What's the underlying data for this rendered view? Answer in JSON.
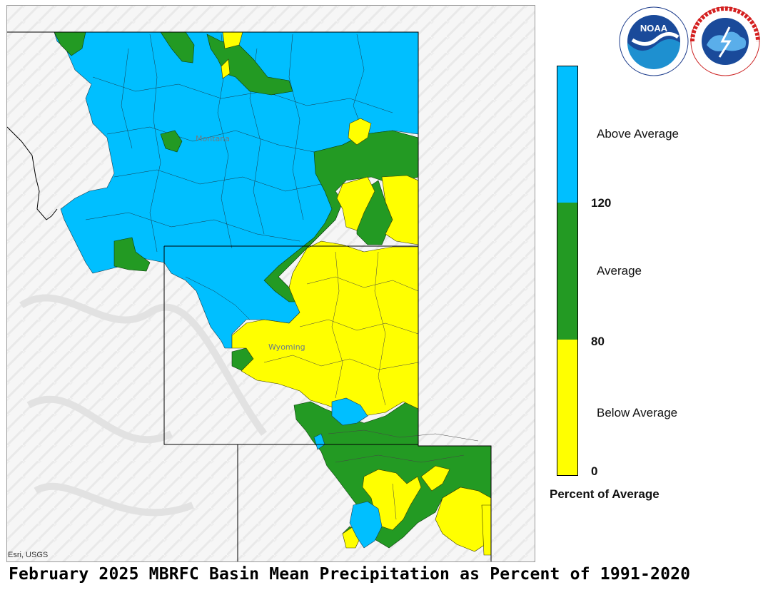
{
  "title": "February 2025 MBRFC Basin Mean Precipitation as Percent of 1991-2020",
  "attribution": "Esri, USGS",
  "map": {
    "state_labels": [
      "Montana",
      "Wyoming"
    ]
  },
  "legend": {
    "title": "Percent of Average",
    "categories": [
      {
        "label": "Above Average",
        "min": 120,
        "color": "#00bfff"
      },
      {
        "label": "Average",
        "min": 80,
        "max": 120,
        "color": "#239a23"
      },
      {
        "label": "Below Average",
        "min": 0,
        "max": 80,
        "color": "#ffff00"
      }
    ],
    "breaks": [
      "120",
      "80",
      "0"
    ]
  },
  "logos": {
    "noaa": {
      "text": "NOAA",
      "ring_text": "NATIONAL OCEANIC AND ATMOSPHERIC ADMINISTRATION · U.S. DEPARTMENT OF COMMERCE"
    },
    "nws": {
      "ring_text": "NATIONAL WEATHER SERVICE"
    }
  },
  "colors": {
    "above": "#00bfff",
    "average": "#239a23",
    "below": "#ffff00",
    "terrain": "#f4f4f4"
  }
}
